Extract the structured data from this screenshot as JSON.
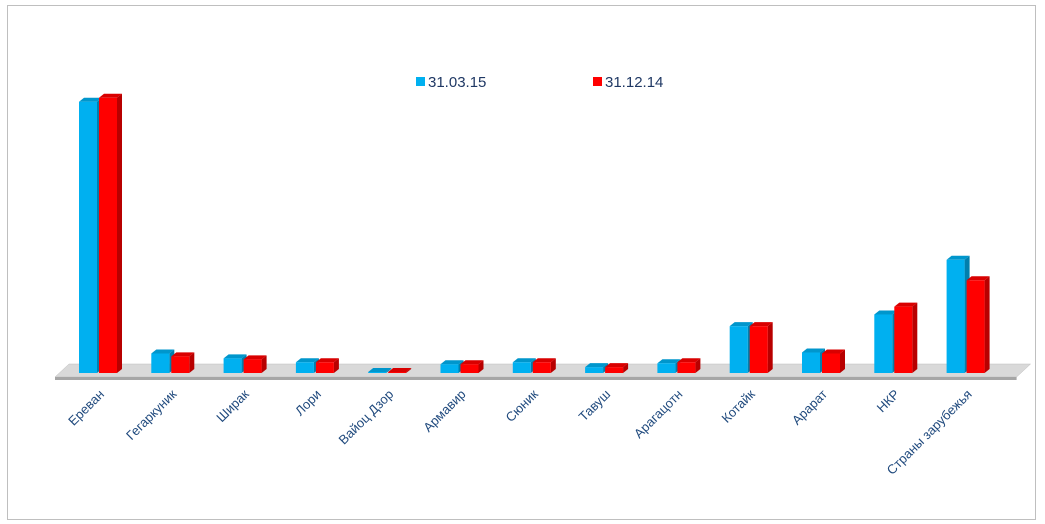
{
  "chart_data": {
    "type": "bar",
    "categories": [
      "Ереван",
      "Гегаркуник",
      "Ширак",
      "Лори",
      "Вайоц Дзор",
      "Армавир",
      "Сюник",
      "Тавуш",
      "Арагацотн",
      "Котайк",
      "Арарат",
      "НКР",
      "Страны зарубежья"
    ],
    "series": [
      {
        "name": "31.03.15",
        "color": "#00b0f0",
        "values": [
          278,
          20,
          15,
          11,
          1,
          9,
          11,
          6,
          10,
          48,
          21,
          60,
          116
        ]
      },
      {
        "name": "31.12.14",
        "color": "#ff0000",
        "values": [
          282,
          17,
          14,
          11,
          1,
          9,
          11,
          6,
          11,
          48,
          20,
          68,
          95
        ]
      }
    ],
    "ylim": [
      0,
      290
    ],
    "grid": false,
    "legend_position": "top-center",
    "view": "3d-clustered-column"
  }
}
